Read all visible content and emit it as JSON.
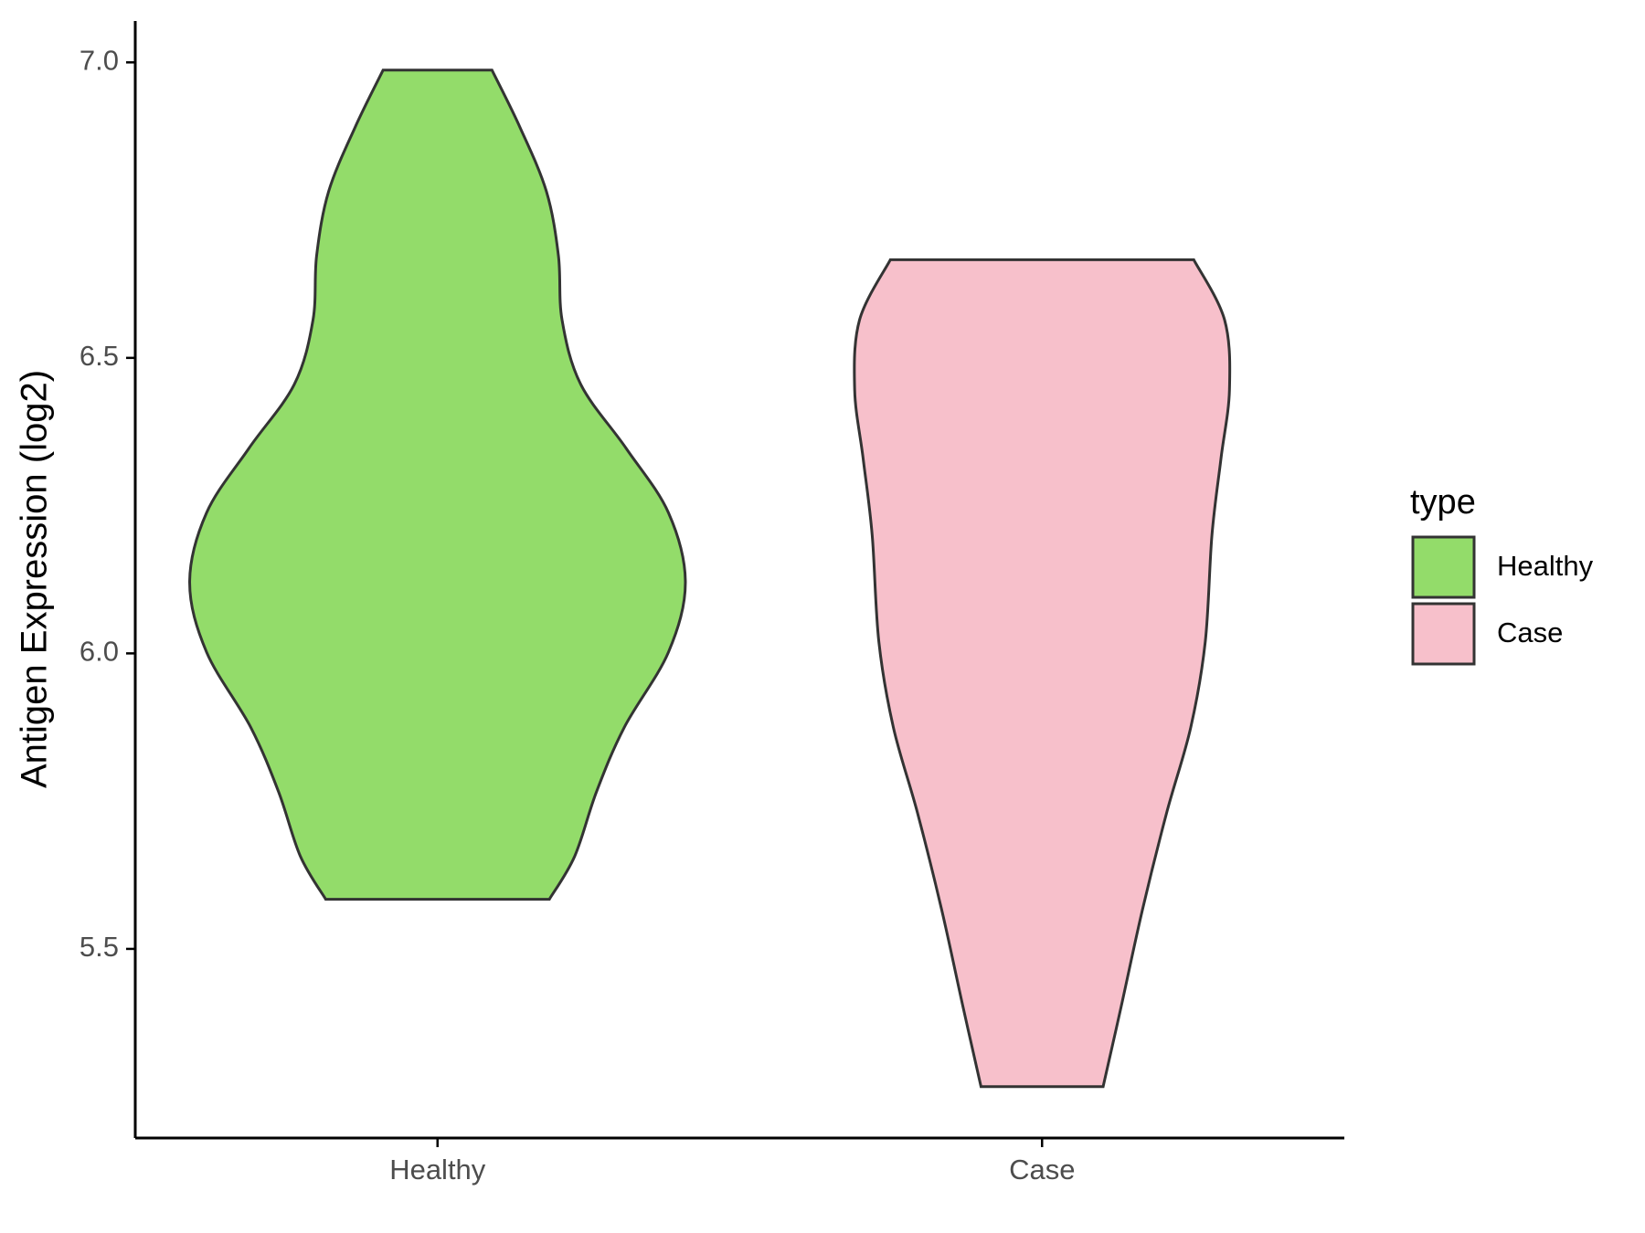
{
  "chart_data": {
    "type": "violin",
    "y_label": "Antigen Expression (log2)",
    "categories": [
      "Healthy",
      "Case"
    ],
    "ylim": [
      5.18,
      7.07
    ],
    "yticks": [
      {
        "value": 5.5,
        "label": "5.5"
      },
      {
        "value": 6,
        "label": "6.0"
      },
      {
        "value": 6.5,
        "label": "6.5"
      },
      {
        "value": 7,
        "label": "7.0"
      }
    ],
    "legend_title": "type",
    "legend_position": "right",
    "series": [
      {
        "name": "Healthy",
        "color": "#93dc6a",
        "y": [
          6.987,
          6.891,
          6.782,
          6.673,
          6.564,
          6.455,
          6.347,
          6.238,
          6.12,
          6.002,
          5.875,
          5.766,
          5.657,
          5.584
        ],
        "half_width": [
          0.09,
          0.136,
          0.18,
          0.2,
          0.206,
          0.237,
          0.312,
          0.382,
          0.41,
          0.382,
          0.309,
          0.263,
          0.227,
          0.185
        ]
      },
      {
        "name": "Case",
        "color": "#f7c0cb",
        "y": [
          6.666,
          6.564,
          6.446,
          6.33,
          6.2,
          6.02,
          5.875,
          5.73,
          5.566,
          5.403,
          5.267
        ],
        "half_width": [
          0.251,
          0.302,
          0.31,
          0.296,
          0.281,
          0.27,
          0.246,
          0.206,
          0.166,
          0.131,
          0.101
        ]
      }
    ]
  }
}
